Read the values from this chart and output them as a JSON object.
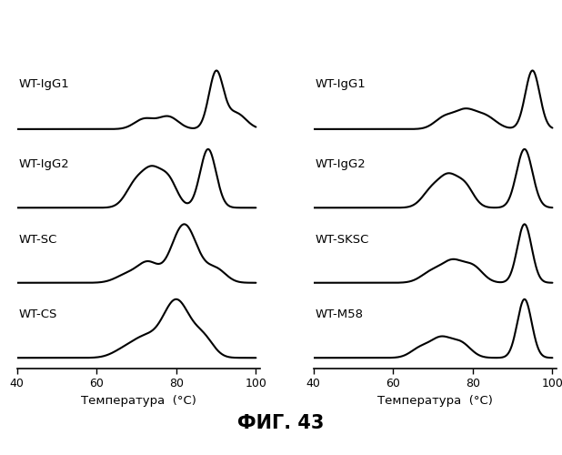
{
  "title": "ФИГ. 43",
  "xlabel": "Температура  (°C)",
  "xlim": [
    40,
    100
  ],
  "xticks": [
    40,
    60,
    80,
    100
  ],
  "background_color": "#ffffff",
  "left_labels": [
    "WT-IgG1",
    "WT-IgG2",
    "WT-SC",
    "WT-CS"
  ],
  "right_labels": [
    "WT-IgG1",
    "WT-IgG2",
    "WT-SKSC",
    "WT-M58"
  ],
  "line_color": "#000000",
  "line_width": 1.5,
  "offsets": [
    3.2,
    2.1,
    1.05,
    0.0
  ],
  "curve_scale": 0.82
}
